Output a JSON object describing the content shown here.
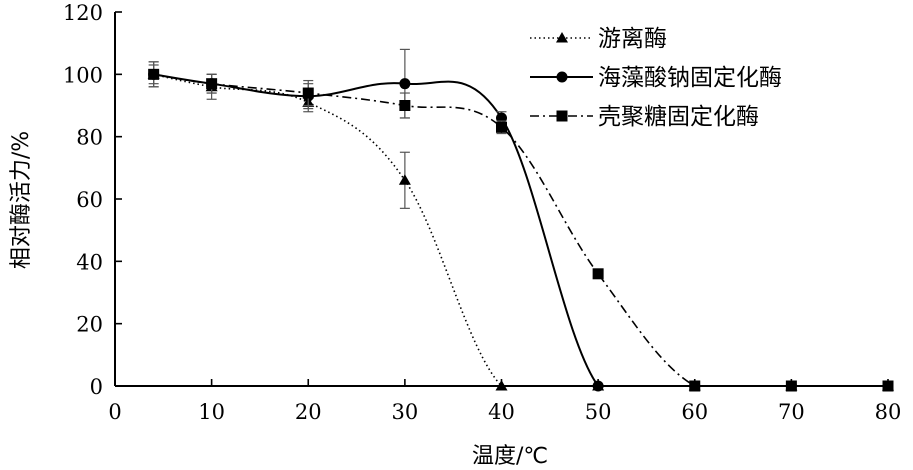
{
  "chart_data": {
    "type": "line",
    "title": "",
    "xlabel": "温度/℃",
    "ylabel": "相对酶活力/%",
    "xlim": [
      0,
      80
    ],
    "ylim": [
      0,
      120
    ],
    "xticks": [
      0,
      10,
      20,
      30,
      40,
      50,
      60,
      70,
      80
    ],
    "yticks": [
      0,
      20,
      40,
      60,
      80,
      100,
      120
    ],
    "grid": false,
    "legend_position": "top-right",
    "series": [
      {
        "name": "游离酶",
        "marker": "triangle",
        "line_style": "dotted",
        "color": "#000000",
        "x": [
          4,
          10,
          20,
          30,
          40,
          50,
          60,
          70,
          80
        ],
        "y": [
          100,
          96,
          91,
          66,
          0,
          0,
          0,
          0,
          0
        ],
        "error": [
          4,
          4,
          3,
          9,
          0,
          0,
          0,
          0,
          0
        ]
      },
      {
        "name": "海藻酸钠固定化酶",
        "marker": "circle",
        "line_style": "solid",
        "color": "#000000",
        "x": [
          4,
          10,
          20,
          30,
          40,
          50,
          60,
          70,
          80
        ],
        "y": [
          100,
          97,
          93,
          97,
          86,
          0,
          0,
          0,
          0
        ],
        "error": [
          4,
          3,
          4,
          11,
          2,
          0,
          0,
          0,
          0
        ]
      },
      {
        "name": "壳聚糖固定化酶",
        "marker": "square",
        "line_style": "dashdot",
        "color": "#000000",
        "x": [
          4,
          10,
          20,
          30,
          40,
          50,
          60,
          70,
          80
        ],
        "y": [
          100,
          97,
          94,
          90,
          83,
          36,
          0,
          0,
          0
        ],
        "error": [
          3,
          3,
          4,
          4,
          2,
          0,
          0,
          0,
          0
        ]
      }
    ]
  }
}
